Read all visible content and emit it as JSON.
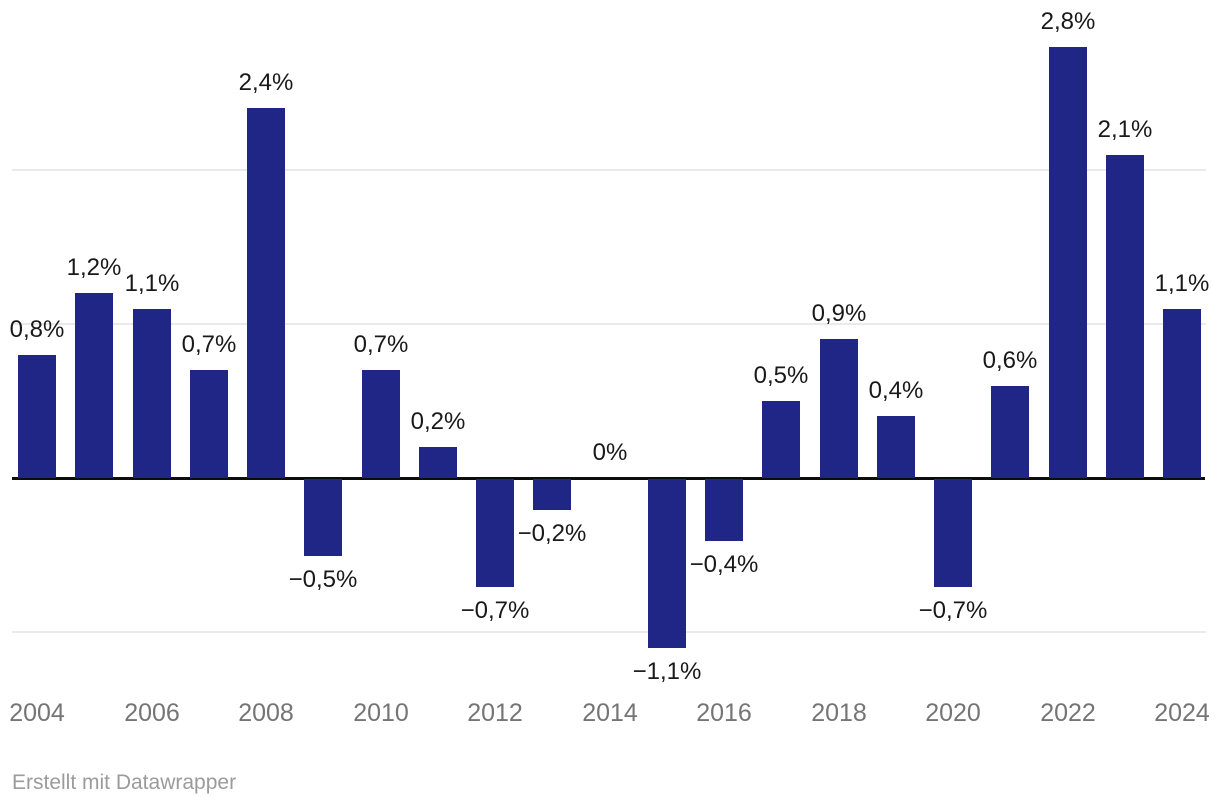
{
  "chart_data": {
    "type": "bar",
    "title": "",
    "xlabel": "",
    "ylabel": "",
    "x": [
      2004,
      2005,
      2006,
      2007,
      2008,
      2009,
      2010,
      2011,
      2012,
      2013,
      2014,
      2015,
      2016,
      2017,
      2018,
      2019,
      2020,
      2021,
      2022,
      2023,
      2024
    ],
    "values": [
      0.8,
      1.2,
      1.1,
      0.7,
      2.4,
      -0.5,
      0.7,
      0.2,
      -0.7,
      -0.2,
      0,
      -1.1,
      -0.4,
      0.5,
      0.9,
      0.4,
      -0.7,
      0.6,
      2.8,
      2.1,
      1.1
    ],
    "value_labels": [
      "0,8%",
      "1,2%",
      "1,1%",
      "0,7%",
      "2,4%",
      "−0,5%",
      "0,7%",
      "0,2%",
      "−0,7%",
      "−0,2%",
      "0%",
      "−1,1%",
      "−0,4%",
      "0,5%",
      "0,9%",
      "0,4%",
      "−0,7%",
      "0,6%",
      "2,8%",
      "2,1%",
      "1,1%"
    ],
    "x_tick_labels": [
      "2004",
      "2006",
      "2008",
      "2010",
      "2012",
      "2014",
      "2016",
      "2018",
      "2020",
      "2022",
      "2024"
    ],
    "x_tick_every": 2,
    "ylim": [
      -1.5,
      3.0
    ],
    "gridline_values": [
      2,
      1,
      -1
    ],
    "zero_line": true,
    "grid": "on",
    "legend_position": "none",
    "number_format": "german-decimal-comma"
  },
  "footer": {
    "text": "Erstellt mit Datawrapper"
  },
  "colors": {
    "bar": "#202686",
    "value_label": "#191919",
    "axis_label": "#757575",
    "footer_text": "#9b9b9b",
    "gridline": "#eaeaea",
    "zero_line": "#0d0d0d",
    "background": "#ffffff"
  }
}
